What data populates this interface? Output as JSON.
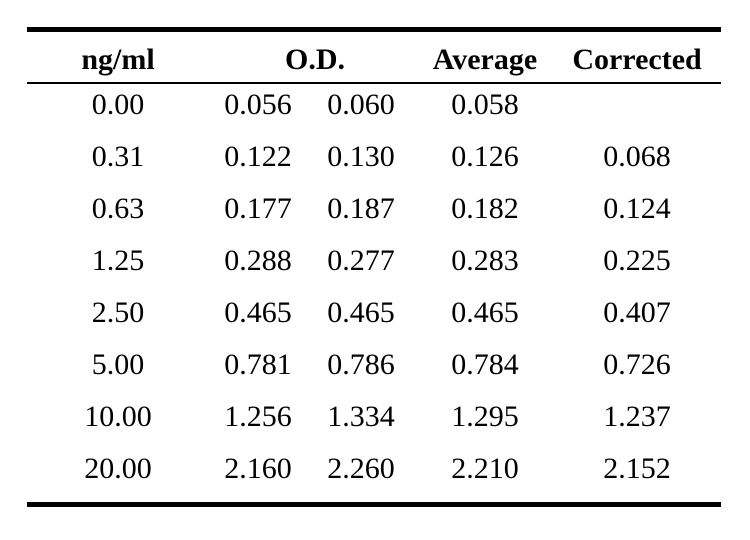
{
  "table": {
    "headers": {
      "conc": "ng/ml",
      "od": "O.D.",
      "average": "Average",
      "corrected": "Corrected"
    },
    "rows": [
      {
        "conc": "0.00",
        "od1": "0.056",
        "od2": "0.060",
        "average": "0.058",
        "corrected": ""
      },
      {
        "conc": "0.31",
        "od1": "0.122",
        "od2": "0.130",
        "average": "0.126",
        "corrected": "0.068"
      },
      {
        "conc": "0.63",
        "od1": "0.177",
        "od2": "0.187",
        "average": "0.182",
        "corrected": "0.124"
      },
      {
        "conc": "1.25",
        "od1": "0.288",
        "od2": "0.277",
        "average": "0.283",
        "corrected": "0.225"
      },
      {
        "conc": "2.50",
        "od1": "0.465",
        "od2": "0.465",
        "average": "0.465",
        "corrected": "0.407"
      },
      {
        "conc": "5.00",
        "od1": "0.781",
        "od2": "0.786",
        "average": "0.784",
        "corrected": "0.726"
      },
      {
        "conc": "10.00",
        "od1": "1.256",
        "od2": "1.334",
        "average": "1.295",
        "corrected": "1.237"
      },
      {
        "conc": "20.00",
        "od1": "2.160",
        "od2": "2.260",
        "average": "2.210",
        "corrected": "2.152"
      }
    ]
  }
}
